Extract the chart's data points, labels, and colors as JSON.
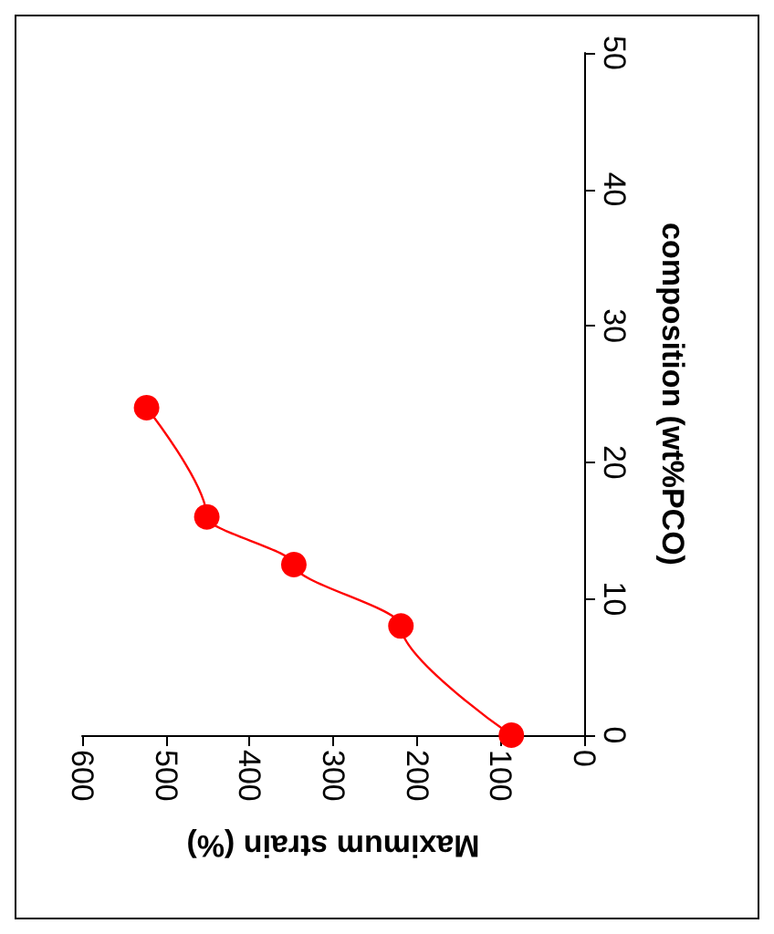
{
  "chart_data": {
    "type": "line",
    "xlabel": "Maximum strain (%)",
    "ylabel": "composition (wt%PCO)",
    "series": [
      {
        "color": "#ff0000",
        "x": [
          87,
          219,
          347,
          451,
          523
        ],
        "values": [
          0,
          8,
          12.5,
          16,
          24
        ]
      }
    ],
    "xlim": [
      600,
      0
    ],
    "xticks": [
      0,
      100,
      200,
      300,
      400,
      500,
      600
    ],
    "ylim": [
      0,
      50
    ],
    "yticks": [
      0,
      10,
      20,
      30,
      40,
      50
    ],
    "marker": "circle",
    "line_style": "solid"
  }
}
